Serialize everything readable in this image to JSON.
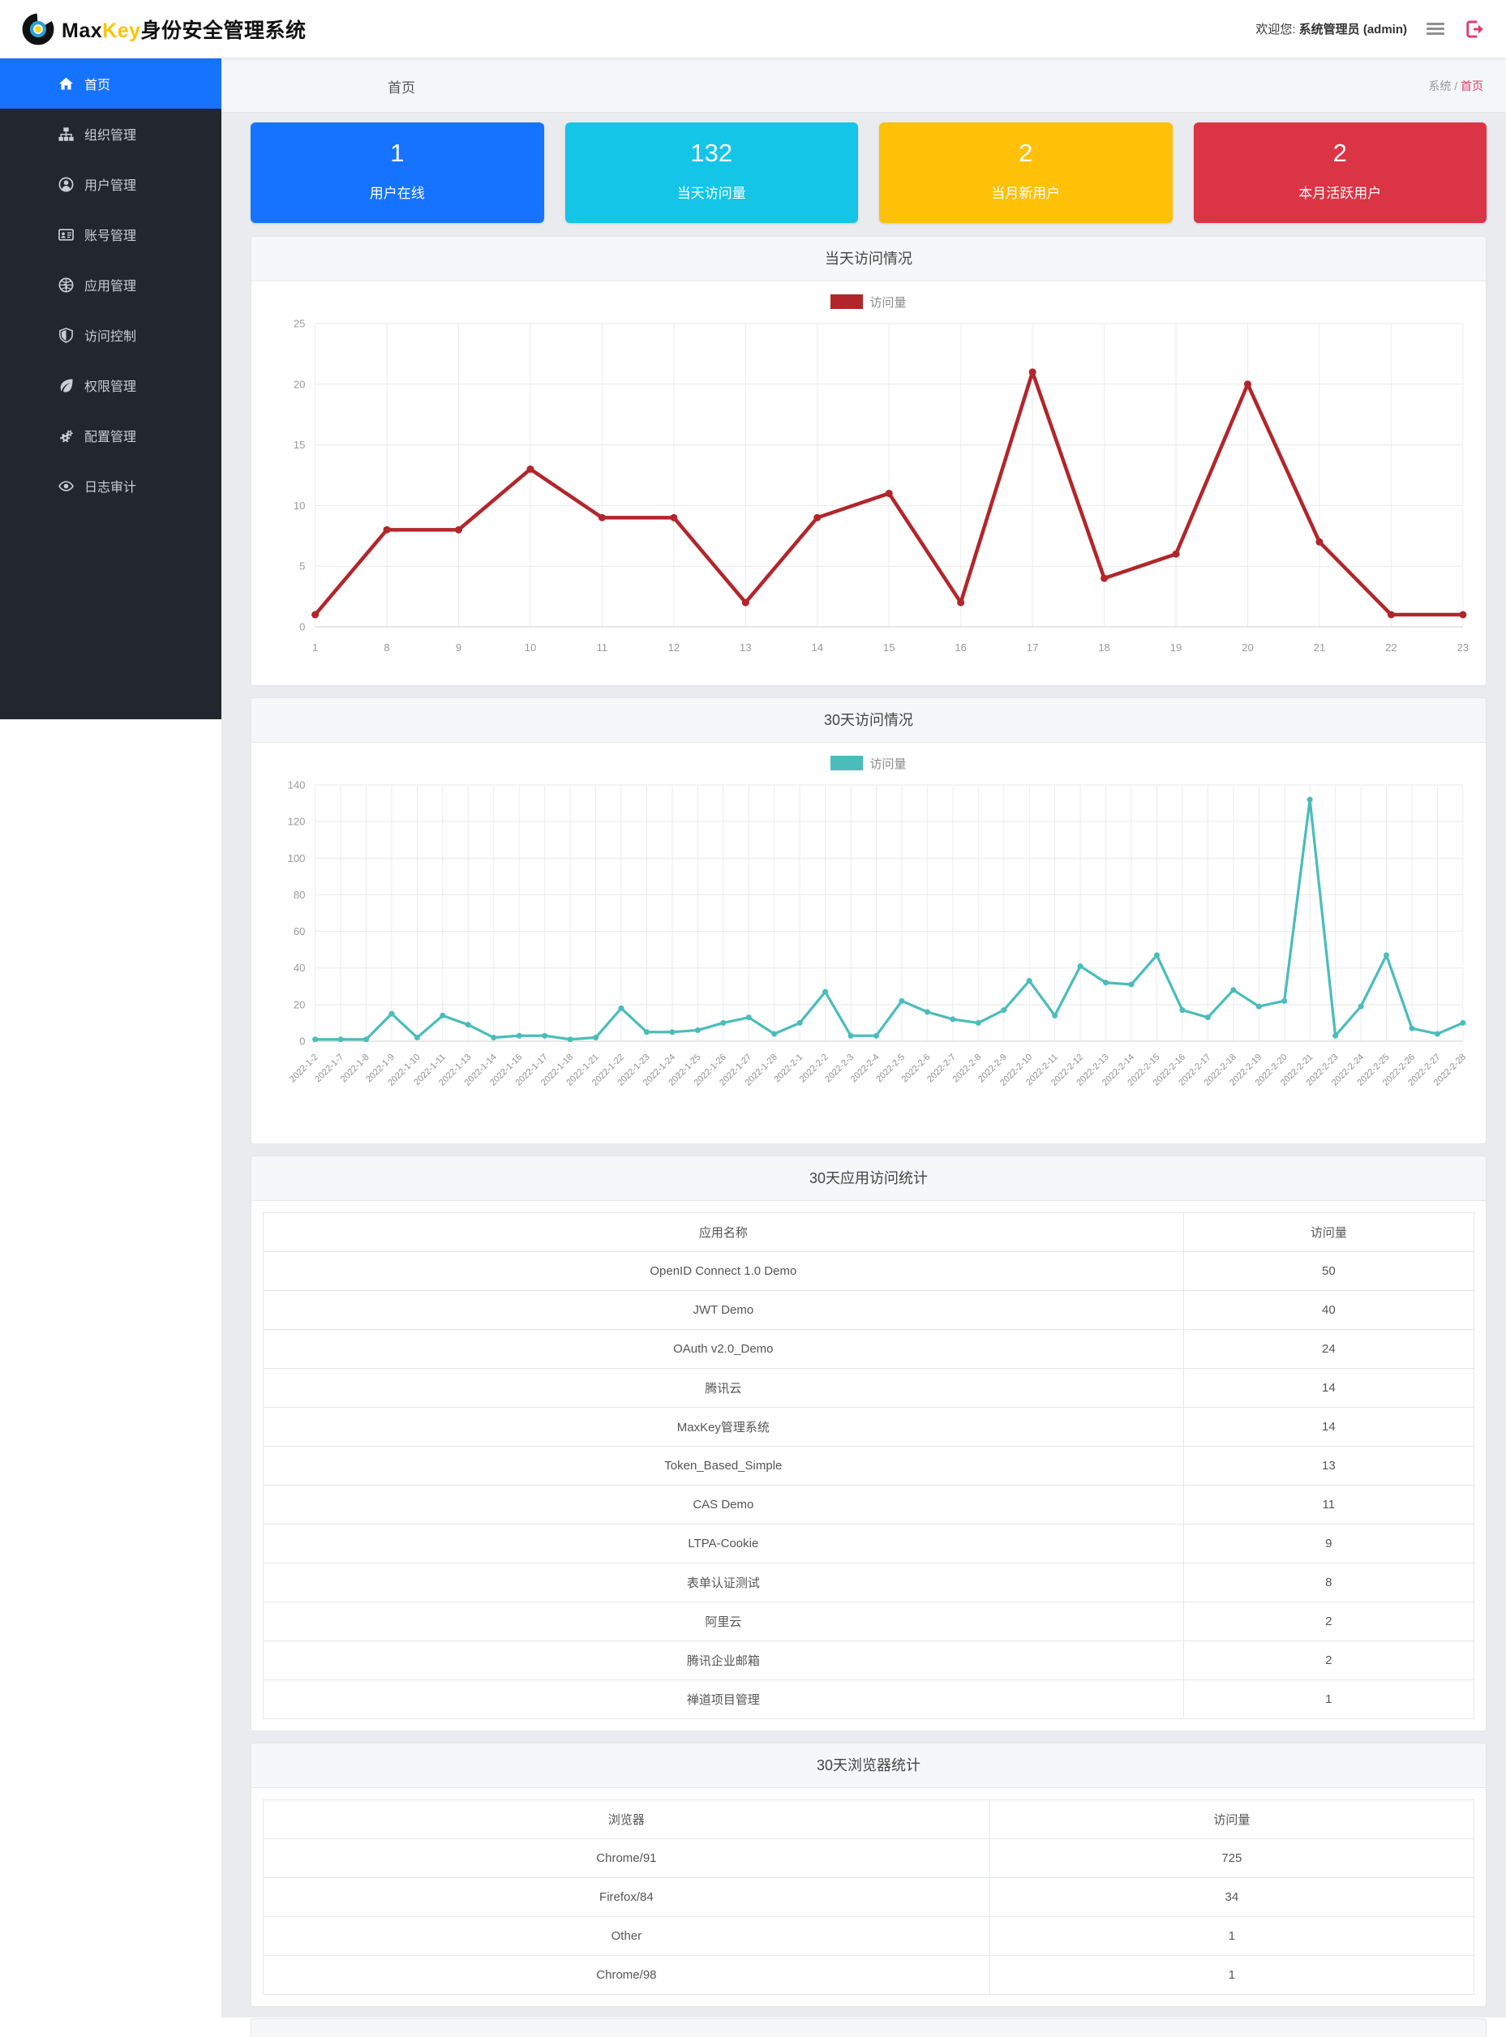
{
  "topbar": {
    "brand_max": "Max",
    "brand_key": "Key",
    "brand_suffix": "身份安全管理系统",
    "welcome_prefix": "欢迎您: ",
    "welcome_user": "系统管理员 (admin)"
  },
  "sidebar": {
    "items": [
      {
        "icon": "home-icon",
        "label": "首页",
        "active": true
      },
      {
        "icon": "org-icon",
        "label": "组织管理",
        "active": false
      },
      {
        "icon": "user-icon",
        "label": "用户管理",
        "active": false
      },
      {
        "icon": "account-icon",
        "label": "账号管理",
        "active": false
      },
      {
        "icon": "app-icon",
        "label": "应用管理",
        "active": false
      },
      {
        "icon": "access-control-icon",
        "label": "访问控制",
        "active": false
      },
      {
        "icon": "permission-icon",
        "label": "权限管理",
        "active": false
      },
      {
        "icon": "config-icon",
        "label": "配置管理",
        "active": false
      },
      {
        "icon": "audit-icon",
        "label": "日志审计",
        "active": false
      }
    ]
  },
  "page_header": {
    "title": "首页",
    "breadcrumb_root": "系统",
    "breadcrumb_sep": " / ",
    "breadcrumb_current": "首页"
  },
  "stat_cards": [
    {
      "value": "1",
      "label": "用户在线",
      "color": "#1673ff"
    },
    {
      "value": "132",
      "label": "当天访问量",
      "color": "#14c5e8"
    },
    {
      "value": "2",
      "label": "当月新用户",
      "color": "#fec107"
    },
    {
      "value": "2",
      "label": "本月活跃用户",
      "color": "#db3445"
    }
  ],
  "chart_data": [
    {
      "type": "line",
      "title": "当天访问情况",
      "legend": "访问量",
      "color": "#b2262b",
      "xlabel": "",
      "ylabel": "",
      "ylim": [
        0,
        25
      ],
      "yticks": [
        0,
        5,
        10,
        15,
        20,
        25
      ],
      "grid": true,
      "legend_position": "top-center",
      "categories": [
        "1",
        "8",
        "9",
        "10",
        "11",
        "12",
        "13",
        "14",
        "15",
        "16",
        "17",
        "18",
        "19",
        "20",
        "21",
        "22",
        "23"
      ],
      "values": [
        1,
        8,
        8,
        13,
        9,
        9,
        2,
        9,
        11,
        2,
        21,
        4,
        6,
        20,
        7,
        1,
        1
      ]
    },
    {
      "type": "line",
      "title": "30天访问情况",
      "legend": "访问量",
      "color": "#4abdbb",
      "xlabel": "",
      "ylabel": "",
      "ylim": [
        0,
        140
      ],
      "yticks": [
        0,
        20,
        40,
        60,
        80,
        100,
        120,
        140
      ],
      "grid": true,
      "legend_position": "top-center",
      "categories": [
        "2022-1-2",
        "2022-1-7",
        "2022-1-8",
        "2022-1-9",
        "2022-1-10",
        "2022-1-11",
        "2022-1-13",
        "2022-1-14",
        "2022-1-16",
        "2022-1-17",
        "2022-1-18",
        "2022-1-21",
        "2022-1-22",
        "2022-1-23",
        "2022-1-24",
        "2022-1-25",
        "2022-1-26",
        "2022-1-27",
        "2022-1-28",
        "2022-2-1",
        "2022-2-2",
        "2022-2-3",
        "2022-2-4",
        "2022-2-5",
        "2022-2-6",
        "2022-2-7",
        "2022-2-8",
        "2022-2-9",
        "2022-2-10",
        "2022-2-11",
        "2022-2-12",
        "2022-2-13",
        "2022-2-14",
        "2022-2-15",
        "2022-2-16",
        "2022-2-17",
        "2022-2-18",
        "2022-2-19",
        "2022-2-20",
        "2022-2-21",
        "2022-2-23",
        "2022-2-24",
        "2022-2-25",
        "2022-2-26",
        "2022-2-27",
        "2022-2-28"
      ],
      "values": [
        1,
        1,
        1,
        15,
        2,
        14,
        9,
        2,
        3,
        3,
        1,
        2,
        18,
        5,
        5,
        6,
        10,
        13,
        4,
        10,
        27,
        3,
        3,
        22,
        16,
        12,
        10,
        17,
        33,
        14,
        41,
        32,
        31,
        47,
        17,
        13,
        28,
        19,
        22,
        132,
        3,
        19,
        47,
        7,
        4,
        10
      ]
    }
  ],
  "tables": [
    {
      "title": "30天应用访问统计",
      "columns": [
        "应用名称",
        "访问量"
      ],
      "col_widths": [
        "76%",
        "24%"
      ],
      "rows": [
        [
          "OpenID Connect 1.0 Demo",
          "50"
        ],
        [
          "JWT Demo",
          "40"
        ],
        [
          "OAuth v2.0_Demo",
          "24"
        ],
        [
          "腾讯云",
          "14"
        ],
        [
          "MaxKey管理系统",
          "14"
        ],
        [
          "Token_Based_Simple",
          "13"
        ],
        [
          "CAS Demo",
          "11"
        ],
        [
          "LTPA-Cookie",
          "9"
        ],
        [
          "表单认证测试",
          "8"
        ],
        [
          "阿里云",
          "2"
        ],
        [
          "腾讯企业邮箱",
          "2"
        ],
        [
          "禅道项目管理",
          "1"
        ]
      ]
    },
    {
      "title": "30天浏览器统计",
      "columns": [
        "浏览器",
        "访问量"
      ],
      "col_widths": [
        "60%",
        "40%"
      ],
      "rows": [
        [
          "Chrome/91",
          "725"
        ],
        [
          "Firefox/84",
          "34"
        ],
        [
          "Other",
          "1"
        ],
        [
          "Chrome/98",
          "1"
        ]
      ]
    }
  ]
}
